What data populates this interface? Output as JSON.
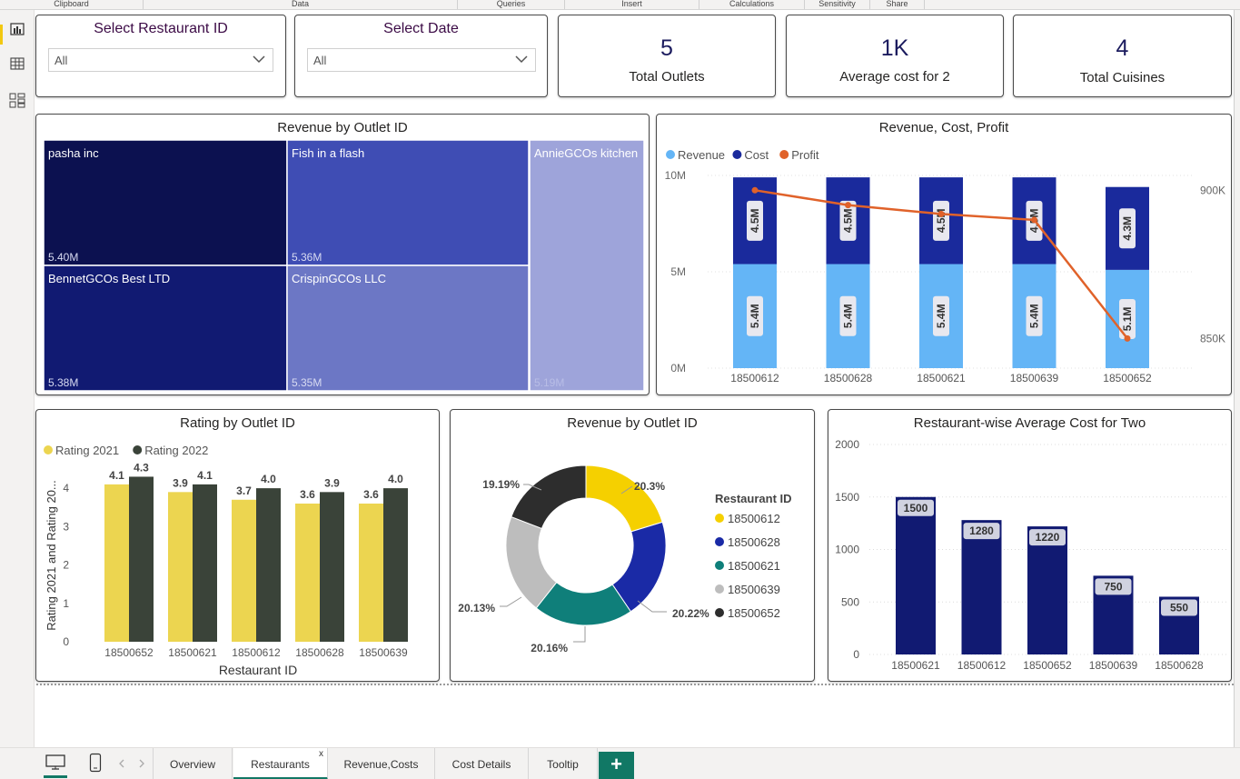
{
  "ribbon": [
    "Clipboard",
    "Data",
    "Queries",
    "Insert",
    "Calculations",
    "Sensitivity",
    "Share"
  ],
  "slicers": {
    "restaurant": {
      "title": "Select Restaurant ID",
      "value": "All"
    },
    "date": {
      "title": "Select Date",
      "value": "All"
    }
  },
  "kpis": [
    {
      "value": "5",
      "label": "Total Outlets"
    },
    {
      "value": "1K",
      "label": "Average cost for 2"
    },
    {
      "value": "4",
      "label": "Total Cuisines"
    }
  ],
  "treemap": {
    "title": "Revenue by Outlet ID",
    "tiles": [
      {
        "name": "pasha inc",
        "value": "5.40M",
        "color": "#0c1150"
      },
      {
        "name": "Fish in a flash",
        "value": "5.36M",
        "color": "#3f4db4"
      },
      {
        "name": "AnnieGCOs kitchen",
        "value": "5.19M",
        "color": "#9ea4da"
      },
      {
        "name": "BennetGCOs Best LTD",
        "value": "5.38M",
        "color": "#111a72"
      },
      {
        "name": "CrispinGCOs LLC",
        "value": "5.35M",
        "color": "#6c77c5"
      }
    ]
  },
  "combo": {
    "title": "Revenue, Cost, Profit",
    "legend": [
      {
        "name": "Revenue",
        "color": "#64b5f6"
      },
      {
        "name": "Cost",
        "color": "#1a2a9c"
      },
      {
        "name": "Profit",
        "color": "#e0622a"
      }
    ],
    "y_ticks": [
      "10M",
      "5M",
      "0M"
    ],
    "y2_ticks": [
      "900K",
      "850K"
    ]
  },
  "rating": {
    "title": "Rating by Outlet ID",
    "legend": [
      {
        "name": "Rating 2021",
        "color": "#ecd550"
      },
      {
        "name": "Rating  2022",
        "color": "#3a4339"
      }
    ],
    "y_title": "Rating 2021 and Rating 20...",
    "x_title": "Restaurant ID",
    "y_ticks": [
      "4",
      "3",
      "2",
      "1",
      "0"
    ]
  },
  "donut": {
    "title": "Revenue by Outlet ID",
    "legend_title": "Restaurant ID",
    "slices": [
      {
        "id": "18500612",
        "label": "20.3%",
        "color": "#f5d000"
      },
      {
        "id": "18500628",
        "label": "20.22%",
        "color": "#1a2aa6"
      },
      {
        "id": "18500621",
        "label": "20.16%",
        "color": "#0f7f7a"
      },
      {
        "id": "18500639",
        "label": "20.13%",
        "color": "#bdbdbd"
      },
      {
        "id": "18500652",
        "label": "19.19%",
        "color": "#2d2d2d"
      }
    ]
  },
  "avgcost": {
    "title": "Restaurant-wise Average Cost for Two",
    "y_ticks": [
      "2000",
      "1500",
      "1000",
      "500",
      "0"
    ]
  },
  "chart_data": [
    {
      "type": "bar",
      "title": "Revenue, Cost, Profit",
      "categories": [
        "18500612",
        "18500628",
        "18500621",
        "18500639",
        "18500652"
      ],
      "series": [
        {
          "name": "Revenue",
          "values": [
            5.4,
            5.4,
            5.4,
            5.4,
            5.1
          ],
          "labels": [
            "5.4M",
            "5.4M",
            "5.4M",
            "5.4M",
            "5.1M"
          ]
        },
        {
          "name": "Cost",
          "values": [
            4.5,
            4.5,
            4.5,
            4.5,
            4.3
          ],
          "labels": [
            "4.5M",
            "4.5M",
            "4.5M",
            "4.5M",
            "4.3M"
          ]
        },
        {
          "name": "Profit",
          "type": "line",
          "axis": "secondary",
          "values": [
            900,
            895,
            892,
            890,
            850
          ]
        }
      ],
      "ylim": [
        0,
        10
      ],
      "y2lim": [
        840,
        905
      ]
    },
    {
      "type": "bar",
      "title": "Rating by Outlet ID",
      "categories": [
        "18500652",
        "18500621",
        "18500612",
        "18500628",
        "18500639"
      ],
      "series": [
        {
          "name": "Rating 2021",
          "values": [
            4.1,
            3.9,
            3.7,
            3.6,
            3.6
          ],
          "labels": [
            "4.1",
            "3.9",
            "3.7",
            "3.6",
            "3.6"
          ]
        },
        {
          "name": "Rating  2022",
          "values": [
            4.3,
            4.1,
            4.0,
            3.9,
            4.0
          ],
          "labels": [
            "4.3",
            "4.1",
            "4.0",
            "3.9",
            "4.0"
          ]
        }
      ],
      "xlabel": "Restaurant ID",
      "ylabel": "Rating 2021 and Rating 20...",
      "ylim": [
        0,
        4.5
      ]
    },
    {
      "type": "pie",
      "title": "Revenue by Outlet ID",
      "categories": [
        "18500612",
        "18500628",
        "18500621",
        "18500639",
        "18500652"
      ],
      "values": [
        20.3,
        20.22,
        20.16,
        20.13,
        19.19
      ]
    },
    {
      "type": "bar",
      "title": "Restaurant-wise Average Cost for Two",
      "categories": [
        "18500621",
        "18500612",
        "18500652",
        "18500639",
        "18500628"
      ],
      "values": [
        1500,
        1280,
        1220,
        750,
        550
      ],
      "labels": [
        "1500",
        "1280",
        "1220",
        "750",
        "550"
      ],
      "ylim": [
        0,
        2000
      ]
    }
  ],
  "tabs": [
    "Overview",
    "Restaurants",
    "Revenue,Costs",
    "Cost Details",
    "Tooltip"
  ],
  "active_tab": "Restaurants",
  "tab_close": "x",
  "tab_add": "+"
}
